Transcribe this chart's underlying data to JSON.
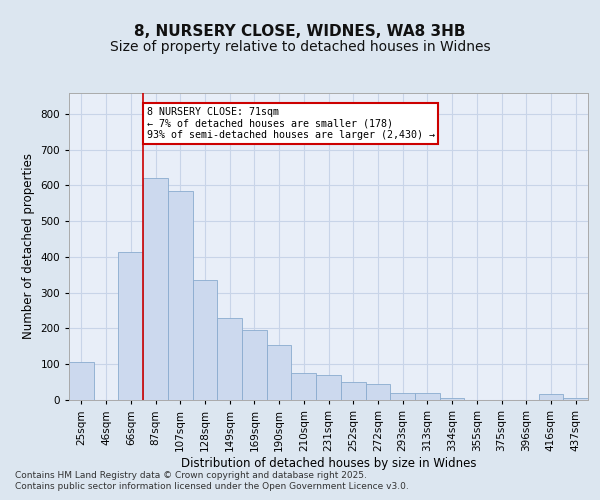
{
  "title1": "8, NURSERY CLOSE, WIDNES, WA8 3HB",
  "title2": "Size of property relative to detached houses in Widnes",
  "xlabel": "Distribution of detached houses by size in Widnes",
  "ylabel": "Number of detached properties",
  "categories": [
    "25sqm",
    "46sqm",
    "66sqm",
    "87sqm",
    "107sqm",
    "128sqm",
    "149sqm",
    "169sqm",
    "190sqm",
    "210sqm",
    "231sqm",
    "252sqm",
    "272sqm",
    "293sqm",
    "313sqm",
    "334sqm",
    "355sqm",
    "375sqm",
    "396sqm",
    "416sqm",
    "437sqm"
  ],
  "values": [
    105,
    0,
    415,
    620,
    585,
    335,
    230,
    195,
    155,
    75,
    70,
    50,
    45,
    20,
    20,
    5,
    0,
    0,
    0,
    18,
    5
  ],
  "bar_color": "#ccd9ee",
  "bar_edge_color": "#8aabcf",
  "vline_x": 2.5,
  "vline_color": "#cc0000",
  "annotation_text": "8 NURSERY CLOSE: 71sqm\n← 7% of detached houses are smaller (178)\n93% of semi-detached houses are larger (2,430) →",
  "annotation_box_color": "#ffffff",
  "annotation_box_edge": "#cc0000",
  "background_color": "#dce6f0",
  "plot_bg_color": "#e8eef8",
  "grid_color": "#c8d4e8",
  "footer_text": "Contains HM Land Registry data © Crown copyright and database right 2025.\nContains public sector information licensed under the Open Government Licence v3.0.",
  "ylim": [
    0,
    860
  ],
  "yticks": [
    0,
    100,
    200,
    300,
    400,
    500,
    600,
    700,
    800
  ],
  "title_fontsize": 11,
  "subtitle_fontsize": 10,
  "axis_fontsize": 8.5,
  "tick_fontsize": 7.5,
  "footer_fontsize": 6.5
}
